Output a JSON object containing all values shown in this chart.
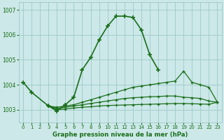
{
  "x_hours": [
    0,
    1,
    2,
    3,
    4,
    5,
    6,
    7,
    8,
    9,
    10,
    11,
    12,
    13,
    14,
    15,
    16,
    17,
    18,
    19,
    20,
    21,
    22,
    23
  ],
  "series": [
    {
      "y": [
        1004.1,
        1003.7,
        null,
        1003.15,
        1002.95,
        1003.2,
        1003.5,
        1004.6,
        1005.1,
        1005.8,
        1006.35,
        1006.75,
        1006.75,
        1006.7,
        1006.2,
        1005.2,
        1004.6,
        null,
        null,
        null,
        null,
        null,
        null,
        null
      ],
      "lw": 1.2,
      "ms": 4
    },
    {
      "y": [
        null,
        null,
        null,
        1003.15,
        1003.1,
        1003.15,
        1003.2,
        1003.3,
        1003.4,
        1003.5,
        1003.6,
        1003.7,
        1003.8,
        1003.9,
        1003.95,
        1004.0,
        1004.05,
        1004.1,
        1004.15,
        1004.55,
        1004.1,
        1004.0,
        1003.9,
        1003.3
      ],
      "lw": 0.9,
      "ms": 3
    },
    {
      "y": [
        null,
        null,
        null,
        1003.15,
        1003.05,
        1003.1,
        1003.15,
        1003.2,
        1003.25,
        1003.3,
        1003.35,
        1003.4,
        1003.45,
        1003.48,
        1003.5,
        1003.52,
        1003.53,
        1003.55,
        1003.55,
        1003.5,
        1003.48,
        1003.45,
        1003.35,
        1003.3
      ],
      "lw": 0.9,
      "ms": 3
    },
    {
      "y": [
        null,
        null,
        null,
        1003.15,
        1003.0,
        1003.03,
        1003.07,
        1003.1,
        1003.12,
        1003.15,
        1003.17,
        1003.18,
        1003.19,
        1003.2,
        1003.21,
        1003.22,
        1003.23,
        1003.24,
        1003.25,
        1003.25,
        1003.24,
        1003.23,
        1003.22,
        1003.3
      ],
      "lw": 0.9,
      "ms": 3
    }
  ],
  "line_color": "#1a6e1a",
  "bg_color": "#cce8e8",
  "grid_color": "#9dc8c8",
  "title": "Graphe pression niveau de la mer (hPa)",
  "title_color": "#1a6e1a",
  "ylim": [
    1002.5,
    1007.3
  ],
  "yticks": [
    1003,
    1004,
    1005,
    1006,
    1007
  ],
  "xticks": [
    0,
    1,
    2,
    3,
    4,
    5,
    6,
    7,
    8,
    9,
    10,
    11,
    12,
    13,
    14,
    15,
    16,
    17,
    18,
    19,
    20,
    21,
    22,
    23
  ]
}
